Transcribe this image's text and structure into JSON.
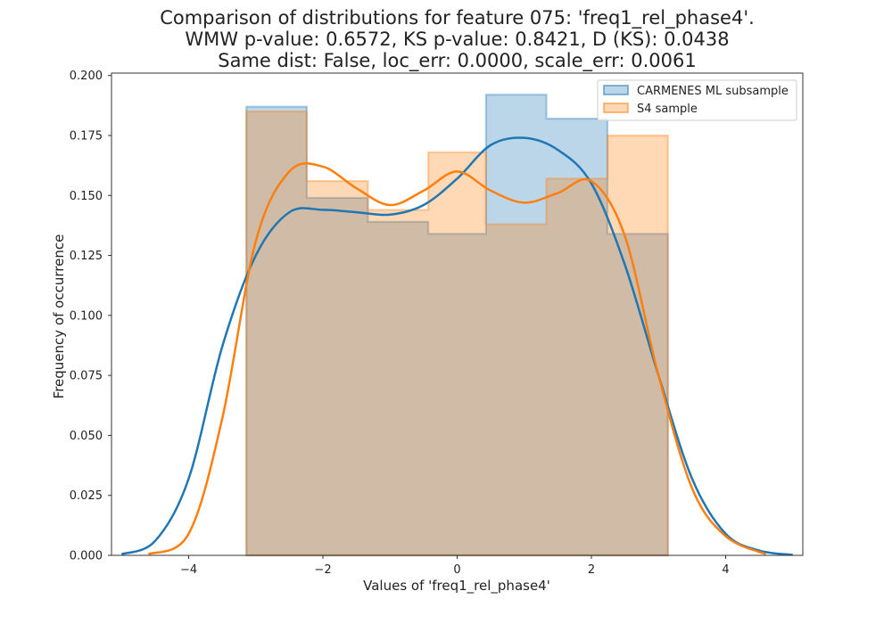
{
  "title_lines": [
    "Comparison of distributions for feature 075: 'freq1_rel_phase4'.",
    "WMW p-value: 0.6572, KS p-value: 0.8421, D (KS): 0.0438",
    "Same dist: False, loc_err: 0.0000, scale_err: 0.0061"
  ],
  "chart_data": {
    "type": "histogram+kde",
    "title": "Comparison of distributions for feature 075: 'freq1_rel_phase4'.\nWMW p-value: 0.6572, KS p-value: 0.8421, D (KS): 0.0438\nSame dist: False, loc_err: 0.0000, scale_err: 0.0061",
    "xlabel": "Values of 'freq1_rel_phase4'",
    "ylabel": "Frequency of occurrence",
    "xlim": [
      -5.15,
      5.15
    ],
    "ylim": [
      0,
      0.201
    ],
    "xticks": [
      -4,
      -2,
      0,
      2,
      4
    ],
    "yticks": [
      0.0,
      0.025,
      0.05,
      0.075,
      0.1,
      0.125,
      0.15,
      0.175,
      0.2
    ],
    "ytick_labels": [
      "0.000",
      "0.025",
      "0.050",
      "0.075",
      "0.100",
      "0.125",
      "0.150",
      "0.175",
      "0.200"
    ],
    "grid": false,
    "legend_position": "top-right",
    "series": [
      {
        "name": "CARMENES ML subsample",
        "color": "#1f77b4",
        "bin_edges": [
          -3.14,
          -2.24,
          -1.33,
          -0.43,
          0.43,
          1.33,
          2.24,
          3.14
        ],
        "hist_values": [
          0.187,
          0.149,
          0.139,
          0.134,
          0.192,
          0.182,
          0.134
        ],
        "kde": {
          "x": [
            -5.0,
            -4.5,
            -4.0,
            -3.5,
            -3.0,
            -2.5,
            -2.0,
            -1.5,
            -1.0,
            -0.5,
            0.0,
            0.5,
            1.0,
            1.5,
            2.0,
            2.5,
            3.0,
            3.5,
            4.0,
            4.5,
            5.0
          ],
          "y": [
            0.0005,
            0.006,
            0.032,
            0.087,
            0.125,
            0.143,
            0.144,
            0.143,
            0.142,
            0.146,
            0.157,
            0.171,
            0.174,
            0.169,
            0.155,
            0.121,
            0.075,
            0.032,
            0.009,
            0.002,
            0.0002
          ]
        }
      },
      {
        "name": "S4 sample",
        "color": "#ff7f0e",
        "bin_edges": [
          -3.14,
          -2.24,
          -1.33,
          -0.43,
          0.43,
          1.33,
          2.24,
          3.14
        ],
        "hist_values": [
          0.185,
          0.156,
          0.144,
          0.168,
          0.138,
          0.157,
          0.175
        ],
        "kde": {
          "x": [
            -4.6,
            -4.0,
            -3.5,
            -3.0,
            -2.5,
            -2.0,
            -1.5,
            -1.0,
            -0.5,
            0.0,
            0.5,
            1.0,
            1.5,
            2.0,
            2.5,
            3.0,
            3.5,
            4.0,
            4.6
          ],
          "y": [
            0.0005,
            0.009,
            0.057,
            0.131,
            0.16,
            0.162,
            0.153,
            0.146,
            0.152,
            0.16,
            0.152,
            0.147,
            0.151,
            0.156,
            0.133,
            0.075,
            0.028,
            0.008,
            0.0005
          ]
        }
      }
    ]
  }
}
